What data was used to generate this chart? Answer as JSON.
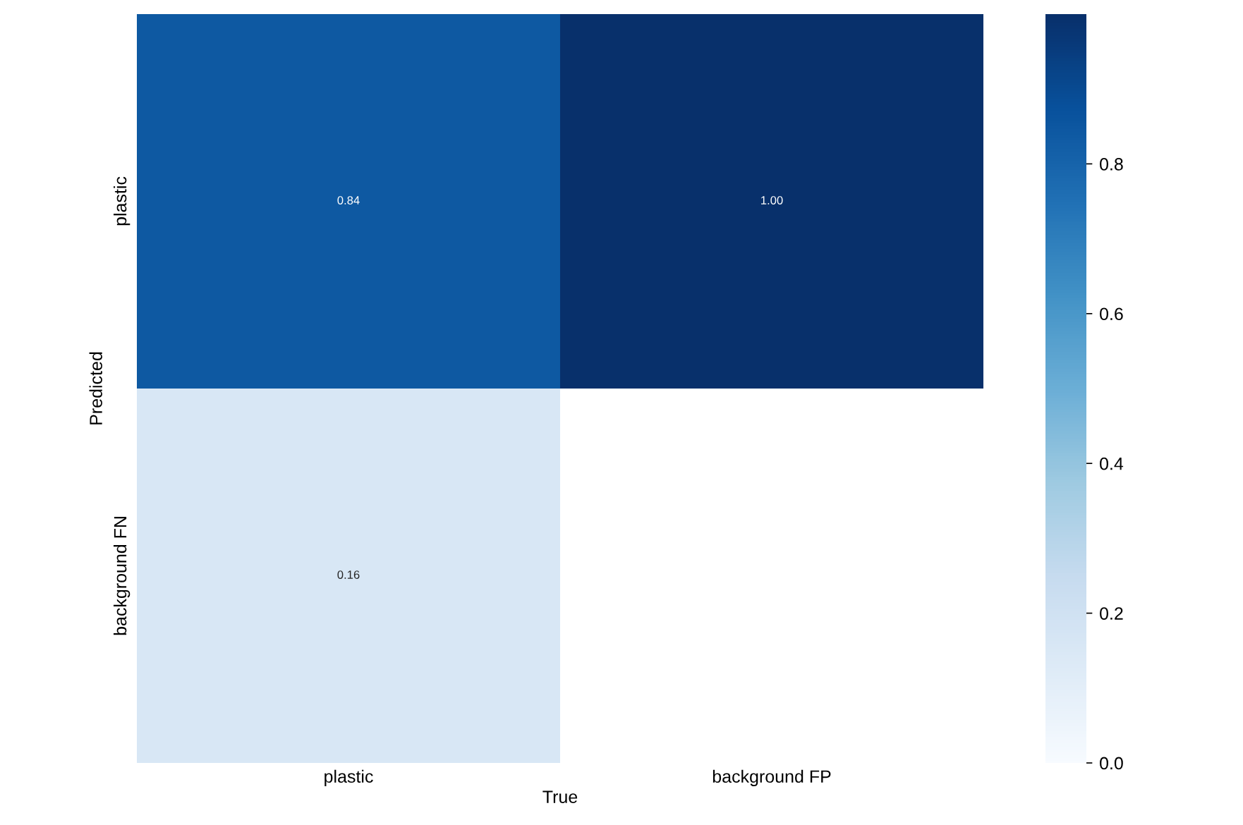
{
  "chart_data": {
    "type": "heatmap",
    "xlabel": "True",
    "ylabel": "Predicted",
    "categories": [
      "plastic",
      "background FP"
    ],
    "y_categories": [
      "plastic",
      "background FN"
    ],
    "cells": [
      [
        0.84,
        1.0
      ],
      [
        0.16,
        null
      ]
    ],
    "cell_labels": [
      [
        "0.84",
        "1.00"
      ],
      [
        "0.16",
        null
      ]
    ],
    "clim": [
      0,
      1
    ],
    "cticks": [
      {
        "value": 0,
        "label": "0.0"
      },
      0.2,
      0.4,
      0.6,
      0.8
    ]
  }
}
